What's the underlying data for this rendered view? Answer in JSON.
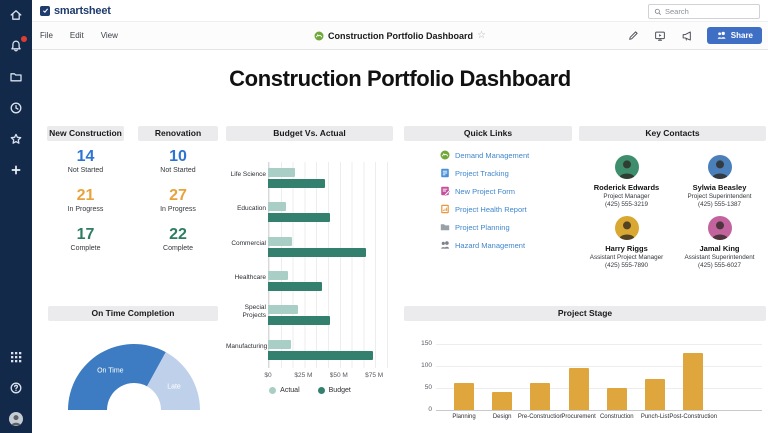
{
  "app": {
    "logo_text": "smartsheet",
    "search": {
      "placeholder": "Search"
    },
    "menus": [
      "File",
      "Edit",
      "View"
    ],
    "doc_title": "Construction Portfolio Dashboard",
    "share_label": "Share",
    "accent_color": "#3e6fc4"
  },
  "sidebar": {
    "icons": [
      "home",
      "notifications",
      "folders",
      "recents",
      "favorites",
      "create",
      "apps",
      "help",
      "account"
    ]
  },
  "dashboard": {
    "title": "Construction Portfolio Dashboard"
  },
  "stats": {
    "new_construction": {
      "title": "New Construction",
      "items": [
        {
          "value": "14",
          "label": "Not Started",
          "color": "#2e74d2"
        },
        {
          "value": "21",
          "label": "In Progress",
          "color": "#e8a33c"
        },
        {
          "value": "17",
          "label": "Complete",
          "color": "#2e7c61"
        }
      ]
    },
    "renovation": {
      "title": "Renovation",
      "items": [
        {
          "value": "10",
          "label": "Not Started",
          "color": "#2e74d2"
        },
        {
          "value": "27",
          "label": "In Progress",
          "color": "#e8a33c"
        },
        {
          "value": "22",
          "label": "Complete",
          "color": "#2e7c61"
        }
      ]
    }
  },
  "quick_links": {
    "title": "Quick Links",
    "link_color": "#3f87cb",
    "links": [
      {
        "label": "Demand Management",
        "icon": "dashboard",
        "color": "#71a83b"
      },
      {
        "label": "Project Tracking",
        "icon": "sheet",
        "color": "#4a90d9"
      },
      {
        "label": "New Project Form",
        "icon": "form",
        "color": "#c5519e"
      },
      {
        "label": "Project Health Report",
        "icon": "report",
        "color": "#e8973c"
      },
      {
        "label": "Project Planning",
        "icon": "folder",
        "color": "#9aa0a8"
      },
      {
        "label": "Hazard Management",
        "icon": "people",
        "color": "#7d828b"
      }
    ]
  },
  "key_contacts": {
    "title": "Key Contacts",
    "contacts": [
      {
        "name": "Roderick Edwards",
        "role": "Project Manager",
        "phone": "(425) 555-3219",
        "avatar_color": "#3e8e6e"
      },
      {
        "name": "Sylwia Beasley",
        "role": "Project Superintendent",
        "phone": "(425) 555-1387",
        "avatar_color": "#4a7fba"
      },
      {
        "name": "Harry Riggs",
        "role": "Assistant Project Manager",
        "phone": "(425) 555-7890",
        "avatar_color": "#d9a833"
      },
      {
        "name": "Jamal King",
        "role": "Assistant Superintendent",
        "phone": "(425) 555-6027",
        "avatar_color": "#c2639e"
      }
    ]
  },
  "chart_data": [
    {
      "id": "budget_vs_actual",
      "type": "bar",
      "orientation": "horizontal",
      "title": "Budget Vs. Actual",
      "categories": [
        "Life Science",
        "Education",
        "Commercial",
        "Healthcare",
        "Special Projects",
        "Manufacturing"
      ],
      "series": [
        {
          "name": "Actual",
          "color": "#a9cec5",
          "values": [
            19,
            13,
            17,
            14,
            21,
            16
          ]
        },
        {
          "name": "Budget",
          "color": "#33806f",
          "values": [
            40,
            44,
            69,
            38,
            44,
            74
          ]
        }
      ],
      "unit": "$M",
      "x_ticks": [
        "$0",
        "$25 M",
        "$50 M",
        "$75 M"
      ],
      "x_tick_values": [
        0,
        25,
        50,
        75
      ],
      "xlim": [
        0,
        89
      ],
      "grid": true,
      "legend_position": "bottom"
    },
    {
      "id": "on_time_completion",
      "type": "gauge",
      "title": "On Time Completion",
      "slices": [
        {
          "label": "On Time",
          "pct": 66,
          "color": "#3d7cc2"
        },
        {
          "label": "Late",
          "pct": 34,
          "color": "#bfd1ea"
        }
      ]
    },
    {
      "id": "project_stage",
      "type": "bar",
      "title": "Project Stage",
      "categories": [
        "Planning",
        "Design",
        "Pre-Construction",
        "Procurement",
        "Construction",
        "Punch-List",
        "Post-Construction"
      ],
      "values": [
        62,
        42,
        62,
        96,
        50,
        70,
        130
      ],
      "color": "#dfa63e",
      "ylim": [
        0,
        150
      ],
      "y_ticks": [
        0,
        50,
        100,
        150
      ],
      "grid": true
    }
  ]
}
